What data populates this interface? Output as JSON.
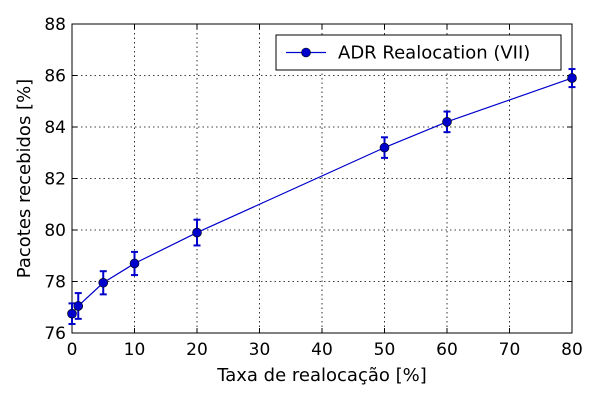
{
  "chart_data": {
    "type": "line",
    "title": "",
    "xlabel": "Taxa de realocação [%]",
    "ylabel": "Pacotes recebidos [%]",
    "xlim": [
      0,
      80
    ],
    "ylim": [
      76,
      88
    ],
    "xticks": [
      0,
      10,
      20,
      30,
      40,
      50,
      60,
      70,
      80
    ],
    "yticks": [
      76,
      78,
      80,
      82,
      84,
      86,
      88
    ],
    "grid": true,
    "legend_position": "top-right",
    "series": [
      {
        "name": "ADR Realocation (VII)",
        "color": "#0000cc",
        "marker": "circle",
        "x": [
          0,
          1,
          5,
          10,
          20,
          50,
          60,
          80
        ],
        "y": [
          76.75,
          77.05,
          77.95,
          78.7,
          79.9,
          83.2,
          84.2,
          85.9
        ],
        "yerr": [
          0.4,
          0.5,
          0.45,
          0.45,
          0.5,
          0.4,
          0.4,
          0.35
        ]
      }
    ]
  }
}
